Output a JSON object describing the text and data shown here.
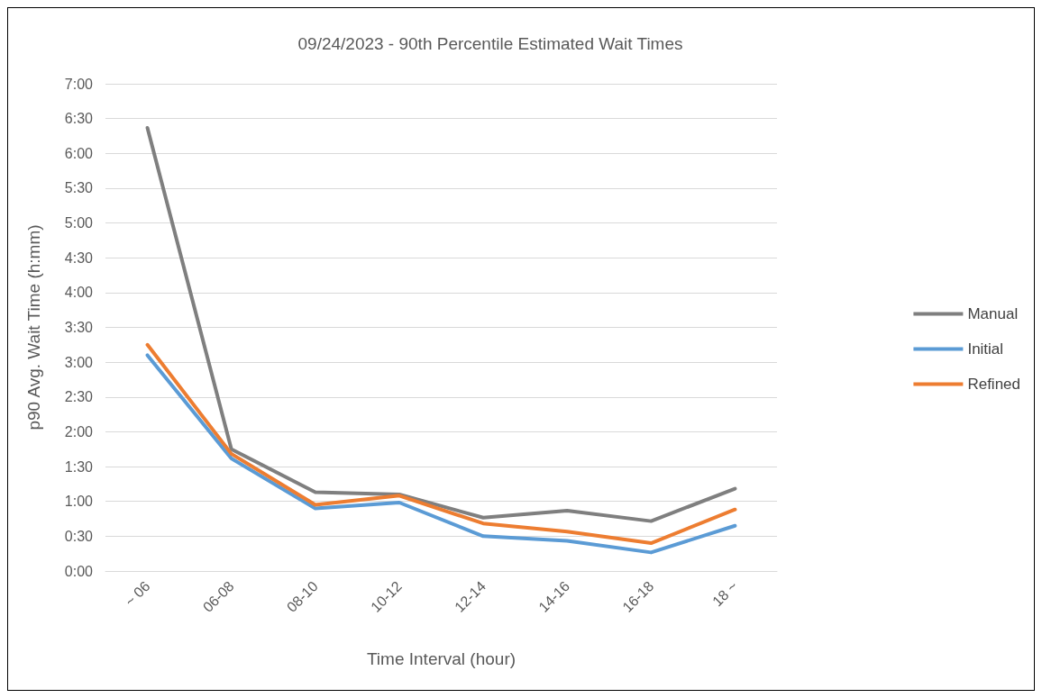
{
  "chart_data": {
    "type": "line",
    "title": "09/24/2023 - 90th Percentile Estimated Wait Times",
    "xlabel": "Time Interval (hour)",
    "ylabel": "p90 Avg. Wait Time (h:mm)",
    "categories": [
      "~ 06",
      "06-08",
      "08-10",
      "10-12",
      "12-14",
      "14-16",
      "16-18",
      "18 ~"
    ],
    "series": [
      {
        "name": "Manual",
        "color": "#7f7f7f",
        "values": [
          382,
          105,
          68,
          66,
          46,
          52,
          43,
          71
        ]
      },
      {
        "name": "Initial",
        "color": "#5b9bd5",
        "values": [
          186,
          97,
          54,
          59,
          30,
          26,
          16,
          39
        ]
      },
      {
        "name": "Refined",
        "color": "#ed7d31",
        "values": [
          195,
          101,
          57,
          65,
          41,
          34,
          24,
          53
        ]
      }
    ],
    "ylim": [
      0,
      420
    ],
    "yticks": [
      {
        "value": 0,
        "label": "0:00"
      },
      {
        "value": 30,
        "label": "0:30"
      },
      {
        "value": 60,
        "label": "1:00"
      },
      {
        "value": 90,
        "label": "1:30"
      },
      {
        "value": 120,
        "label": "2:00"
      },
      {
        "value": 150,
        "label": "2:30"
      },
      {
        "value": 180,
        "label": "3:00"
      },
      {
        "value": 210,
        "label": "3:30"
      },
      {
        "value": 240,
        "label": "4:00"
      },
      {
        "value": 270,
        "label": "4:30"
      },
      {
        "value": 300,
        "label": "5:00"
      },
      {
        "value": 330,
        "label": "5:30"
      },
      {
        "value": 360,
        "label": "6:00"
      },
      {
        "value": 390,
        "label": "6:30"
      },
      {
        "value": 420,
        "label": "7:00"
      }
    ],
    "grid": "y",
    "legend": "right",
    "marker": "none",
    "line_style": "solid"
  }
}
